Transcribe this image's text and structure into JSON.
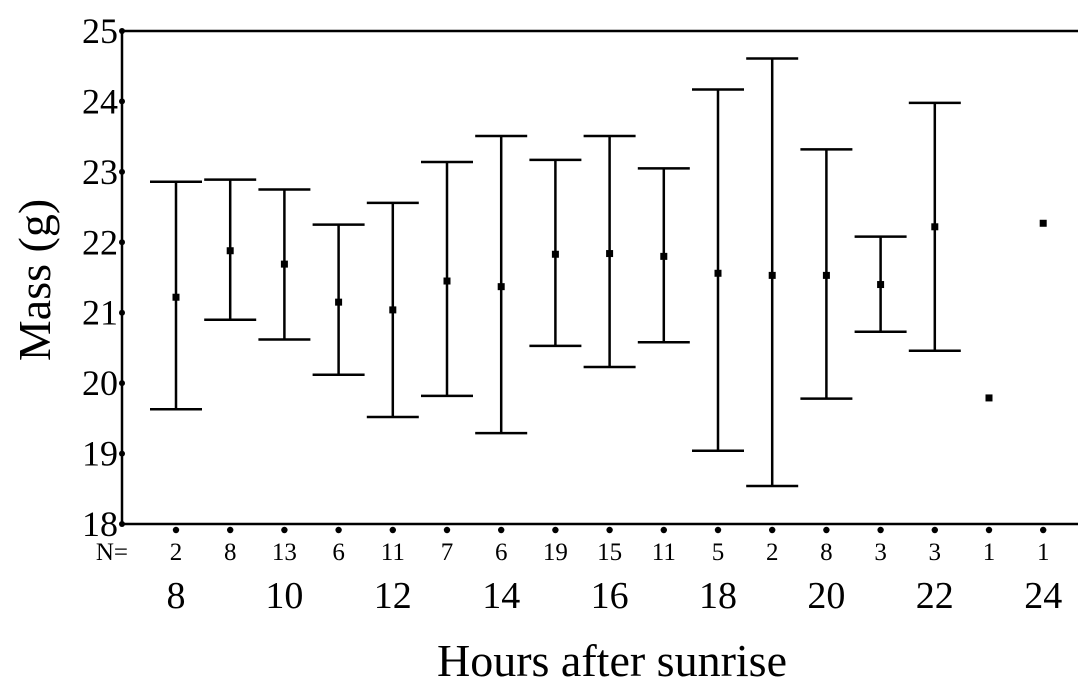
{
  "chart_data": {
    "type": "errorbar",
    "xlabel": "Hours after sunrise",
    "ylabel": "Mass (g)",
    "ylim": [
      18,
      25
    ],
    "yticks": [
      18,
      19,
      20,
      21,
      22,
      23,
      24,
      25
    ],
    "x": [
      8,
      9,
      10,
      11,
      12,
      13,
      14,
      15,
      16,
      17,
      18,
      19,
      20,
      21,
      22,
      23,
      24
    ],
    "xtick_labels": [
      "8",
      "10",
      "12",
      "14",
      "16",
      "18",
      "20",
      "22",
      "24"
    ],
    "xtick_label_positions": [
      8,
      10,
      12,
      14,
      16,
      18,
      20,
      22,
      24
    ],
    "n_prefix": "N=",
    "n": [
      "2",
      "8",
      "13",
      "6",
      "11",
      "7",
      "6",
      "19",
      "15",
      "11",
      "5",
      "2",
      "8",
      "3",
      "3",
      "1",
      "1"
    ],
    "mean": [
      21.22,
      21.88,
      21.69,
      21.15,
      21.04,
      21.45,
      21.37,
      21.83,
      21.84,
      21.8,
      21.56,
      21.53,
      21.53,
      21.4,
      22.22,
      19.79,
      22.27
    ],
    "lower": [
      19.63,
      20.9,
      20.62,
      20.12,
      19.52,
      19.82,
      19.29,
      20.53,
      20.23,
      20.58,
      19.04,
      18.54,
      19.78,
      20.73,
      20.46,
      null,
      null
    ],
    "upper": [
      22.86,
      22.89,
      22.75,
      22.25,
      22.56,
      23.14,
      23.51,
      23.17,
      23.51,
      23.05,
      24.17,
      24.61,
      23.32,
      22.08,
      23.98,
      null,
      null
    ],
    "grid": false
  }
}
